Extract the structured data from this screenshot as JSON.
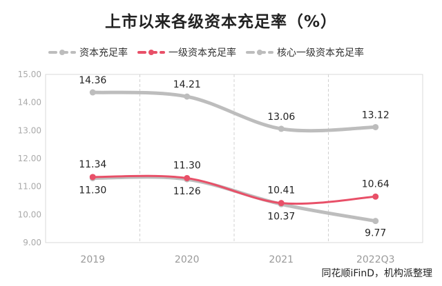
{
  "chart_data": {
    "type": "line",
    "title": "上市以来各级资本充足率（%）",
    "categories": [
      "2019",
      "2020",
      "2021",
      "2022Q3"
    ],
    "xlabel": "",
    "ylabel": "",
    "ylim": [
      9.0,
      15.0
    ],
    "yticks": [
      "15.00",
      "14.00",
      "13.00",
      "12.00",
      "11.00",
      "10.00",
      "9.00"
    ],
    "grid": "vertical dashed",
    "legend_position": "top-left",
    "series": [
      {
        "name": "资本充足率",
        "color": "#bdbdbd",
        "values": [
          14.36,
          14.21,
          13.06,
          13.12
        ],
        "labels": [
          "14.36",
          "14.21",
          "13.06",
          "13.12"
        ]
      },
      {
        "name": "一级资本充足率",
        "color": "#e85068",
        "values": [
          11.34,
          11.3,
          10.41,
          10.64
        ],
        "labels": [
          "11.34",
          "11.30",
          "10.41",
          "10.64"
        ]
      },
      {
        "name": "核心一级资本充足率",
        "color": "#bdbdbd",
        "values": [
          11.3,
          11.26,
          10.37,
          9.77
        ],
        "labels": [
          "11.30",
          "11.26",
          "10.37",
          "9.77"
        ]
      }
    ]
  },
  "source": "同花顺iFinD，机构派整理"
}
